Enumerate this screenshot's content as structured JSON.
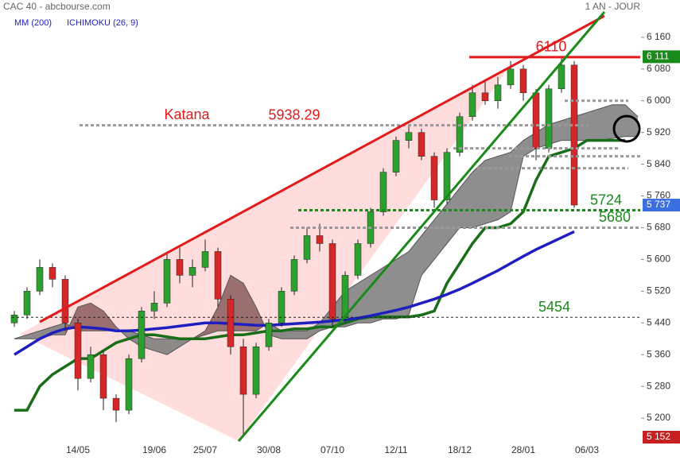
{
  "chart_data": {
    "type": "candlestick",
    "title": "CAC 40 - abcbourse.com",
    "period": "1 AN - JOUR",
    "categories": [
      null,
      null,
      null,
      null,
      null,
      "14/05",
      null,
      null,
      null,
      null,
      null,
      "19/06",
      null,
      null,
      null,
      "25/07",
      null,
      null,
      null,
      null,
      "30/08",
      null,
      null,
      null,
      null,
      "07/10",
      null,
      null,
      null,
      null,
      "12/11",
      null,
      null,
      null,
      null,
      "18/12",
      null,
      null,
      null,
      null,
      "28/01",
      null,
      null,
      null,
      null,
      "06/03",
      null,
      null,
      null,
      null
    ],
    "open": [
      5440,
      5460,
      5520,
      5580,
      5550,
      5440,
      5300,
      5360,
      5250,
      5220,
      5350,
      5470,
      5490,
      5600,
      5560,
      5580,
      5620,
      5500,
      5380,
      5260,
      5380,
      5440,
      5520,
      5600,
      5660,
      5640,
      5450,
      5560,
      5640,
      5720,
      5820,
      5900,
      5920,
      5860,
      5750,
      5870,
      5960,
      6020,
      6000,
      6040,
      6080,
      6020,
      5880,
      6030,
      6090,
      null,
      null,
      null,
      null,
      null
    ],
    "high": [
      5470,
      5530,
      5600,
      5590,
      5560,
      5450,
      5380,
      5370,
      5260,
      5360,
      5480,
      5520,
      5620,
      5630,
      5600,
      5650,
      5630,
      5510,
      5400,
      5390,
      5450,
      5530,
      5610,
      5680,
      5690,
      5650,
      5570,
      5650,
      5730,
      5830,
      5910,
      5940,
      5930,
      5870,
      5880,
      5970,
      6040,
      6050,
      6060,
      6100,
      6090,
      6030,
      6040,
      6111,
      6100,
      null,
      null,
      null,
      null,
      null
    ],
    "low": [
      5430,
      5450,
      5510,
      5530,
      5420,
      5270,
      5290,
      5220,
      5190,
      5210,
      5340,
      5450,
      5480,
      5540,
      5530,
      5570,
      5480,
      5360,
      5152,
      5250,
      5370,
      5430,
      5510,
      5590,
      5620,
      5430,
      5440,
      5550,
      5630,
      5710,
      5810,
      5880,
      5850,
      5730,
      5740,
      5860,
      5950,
      5990,
      5980,
      6030,
      6000,
      5850,
      5870,
      6020,
      5730,
      null,
      null,
      null,
      null,
      null
    ],
    "close": [
      5460,
      5520,
      5580,
      5550,
      5440,
      5300,
      5360,
      5250,
      5220,
      5350,
      5470,
      5490,
      5600,
      5560,
      5580,
      5620,
      5500,
      5380,
      5260,
      5380,
      5440,
      5520,
      5600,
      5660,
      5640,
      5450,
      5560,
      5640,
      5720,
      5820,
      5900,
      5920,
      5860,
      5750,
      5870,
      5960,
      6020,
      6000,
      6040,
      6080,
      6020,
      5880,
      6030,
      6090,
      5737,
      null,
      null,
      null,
      null,
      null
    ],
    "up_color": "#2ca02c",
    "down_color": "#d62728",
    "indicators": [
      {
        "name": "MM (200)",
        "color": "#1f1fbf",
        "values": [
          5360,
          5380,
          5400,
          5415,
          5425,
          5430,
          5428,
          5425,
          5420,
          5420,
          5422,
          5425,
          5428,
          5432,
          5436,
          5440,
          5440,
          5438,
          5436,
          5434,
          5434,
          5436,
          5438,
          5440,
          5442,
          5445,
          5448,
          5452,
          5458,
          5465,
          5472,
          5480,
          5490,
          5500,
          5512,
          5525,
          5540,
          5556,
          5572,
          5590,
          5608,
          5625,
          5640,
          5655,
          5670,
          null,
          null,
          null,
          null,
          null
        ]
      },
      {
        "name": "ICHIMOKU (26, 9)",
        "color": "#1a6e1a",
        "bull_cloud": "#7a7a7a",
        "bear_cloud": "#8a5c5c",
        "kijun": [
          5220,
          5220,
          5280,
          5310,
          5330,
          5350,
          5350,
          5370,
          5390,
          5400,
          5410,
          5410,
          5405,
          5400,
          5400,
          5400,
          5405,
          5410,
          5410,
          5415,
          5420,
          5420,
          5425,
          5425,
          5430,
          5430,
          5440,
          5450,
          5455,
          5455,
          5455,
          5455,
          5460,
          5470,
          5540,
          5590,
          5640,
          5680,
          5680,
          5690,
          5720,
          5800,
          5860,
          5870,
          5880,
          5900,
          5900,
          5900,
          5900,
          null
        ],
        "span_a": [
          5400,
          5410,
          5420,
          5430,
          5440,
          5420,
          5420,
          5420,
          5420,
          5420,
          5410,
          5400,
          5400,
          5400,
          5400,
          5410,
          5420,
          5420,
          5420,
          5420,
          5440,
          5420,
          5420,
          5420,
          5440,
          5480,
          5520,
          5540,
          5560,
          5580,
          5600,
          5620,
          5660,
          5700,
          5740,
          5780,
          5820,
          5850,
          5860,
          5870,
          5900,
          5920,
          5940,
          5950,
          5960,
          5970,
          5980,
          5990,
          5990,
          5960
        ],
        "span_b": [
          5400,
          5400,
          5400,
          5410,
          5410,
          5480,
          5490,
          5470,
          5430,
          5400,
          5380,
          5370,
          5360,
          5380,
          5400,
          5420,
          5480,
          5560,
          5540,
          5480,
          5410,
          5400,
          5400,
          5400,
          5420,
          5430,
          5430,
          5440,
          5440,
          5450,
          5450,
          5460,
          5560,
          5600,
          5640,
          5680,
          5680,
          5690,
          5700,
          5720,
          5860,
          5880,
          5890,
          5900,
          5900,
          5900,
          5900,
          5905,
          5910,
          5910
        ]
      }
    ],
    "annotations": [
      {
        "text": "Katana",
        "color": "#e31a1c"
      }
    ],
    "levels": [
      {
        "value": 5938.29,
        "label": "5938.29",
        "color": "#999999",
        "label_color": "#e31a1c",
        "style": "dotted"
      },
      {
        "value": 6110,
        "label": "6110",
        "color": "#e31a1c",
        "label_color": "#e31a1c",
        "style": "solid"
      },
      {
        "value": 5724,
        "label": "5724",
        "color": "#1a8a1a",
        "label_color": "#1a8a1a",
        "style": "dotted"
      },
      {
        "value": 5680,
        "label": "5680",
        "color": "#999999",
        "label_color": "#1a8a1a",
        "style": "dotted"
      },
      {
        "value": 5454,
        "label": "5454",
        "color": "#222222",
        "label_color": "#1a8a1a",
        "style": "dashed"
      },
      {
        "value": 6000,
        "color": "#999999",
        "style": "dotted"
      },
      {
        "value": 5880,
        "color": "#999999",
        "style": "dotted"
      },
      {
        "value": 5860,
        "color": "#999999",
        "style": "dotted"
      },
      {
        "value": 5830,
        "color": "#999999",
        "style": "dotted"
      }
    ],
    "markers": [
      {
        "value": 6111,
        "label": "6 111",
        "color": "#1a8a1a"
      },
      {
        "value": 5737,
        "label": "5 737",
        "color": "#3b6fe0"
      },
      {
        "value": 5152,
        "label": "5 152",
        "color": "#c62020"
      }
    ],
    "ylim": [
      5142,
      6254
    ],
    "yticks": [
      {
        "value": 6160,
        "label": "6 160"
      },
      {
        "value": 6080,
        "label": "6 080"
      },
      {
        "value": 6000,
        "label": "6 000"
      },
      {
        "value": 5920,
        "label": "5 920"
      },
      {
        "value": 5840,
        "label": "5 840"
      },
      {
        "value": 5760,
        "label": "5 760"
      },
      {
        "value": 5680,
        "label": "5 680"
      },
      {
        "value": 5600,
        "label": "5 600"
      },
      {
        "value": 5520,
        "label": "5 520"
      },
      {
        "value": 5440,
        "label": "5 440"
      },
      {
        "value": 5360,
        "label": "5 360"
      },
      {
        "value": 5280,
        "label": "5 280"
      },
      {
        "value": 5200,
        "label": "5 200"
      }
    ]
  }
}
